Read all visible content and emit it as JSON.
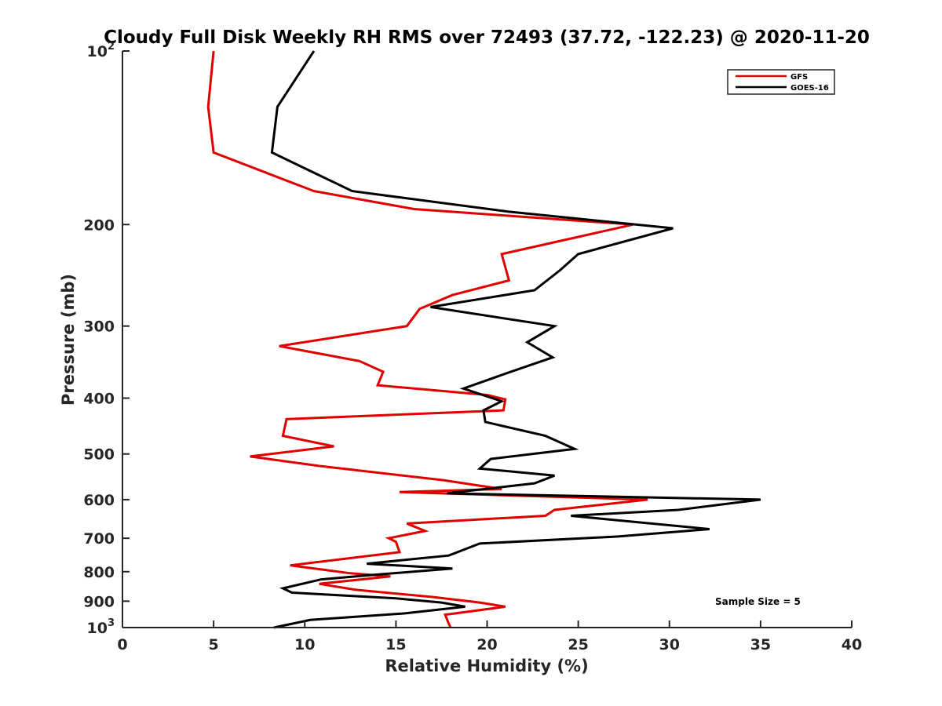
{
  "chart_data": {
    "type": "line",
    "title": "Cloudy Full Disk Weekly RH RMS over 72493 (37.72, -122.23) @ 2020-11-20",
    "xlabel": "Relative Humidity (%)",
    "ylabel": "Pressure (mb)",
    "xlim": [
      0,
      40
    ],
    "ylim": [
      100,
      1000
    ],
    "y_scale": "log",
    "y_reversed": true,
    "x_ticks": [
      0,
      5,
      10,
      15,
      20,
      25,
      30,
      35,
      40
    ],
    "y_ticks": [
      {
        "value": 100,
        "base": "10",
        "exp": "2"
      },
      {
        "value": 200,
        "label": "200"
      },
      {
        "value": 300,
        "label": "300"
      },
      {
        "value": 400,
        "label": "400"
      },
      {
        "value": 500,
        "label": "500"
      },
      {
        "value": 600,
        "label": "600"
      },
      {
        "value": 700,
        "label": "700"
      },
      {
        "value": 800,
        "label": "800"
      },
      {
        "value": 900,
        "label": "900"
      },
      {
        "value": 1000,
        "base": "10",
        "exp": "3"
      }
    ],
    "legend_position": "top-right",
    "grid": false,
    "annotation": "Sample Size = 5",
    "series": [
      {
        "name": "GFS",
        "color": "#e00000",
        "points": [
          [
            5.0,
            100
          ],
          [
            4.7,
            125
          ],
          [
            5.0,
            150
          ],
          [
            10.5,
            175
          ],
          [
            16.0,
            188
          ],
          [
            28.0,
            200
          ],
          [
            20.8,
            225
          ],
          [
            21.2,
            250
          ],
          [
            18.1,
            265
          ],
          [
            16.3,
            280
          ],
          [
            15.6,
            300
          ],
          [
            8.6,
            325
          ],
          [
            13.0,
            345
          ],
          [
            14.3,
            360
          ],
          [
            14.0,
            380
          ],
          [
            20.0,
            395
          ],
          [
            21.0,
            402
          ],
          [
            20.9,
            420
          ],
          [
            9.0,
            435
          ],
          [
            8.8,
            465
          ],
          [
            11.6,
            485
          ],
          [
            7.0,
            505
          ],
          [
            10.9,
            525
          ],
          [
            17.6,
            555
          ],
          [
            20.8,
            575
          ],
          [
            15.2,
            582
          ],
          [
            28.8,
            600
          ],
          [
            23.7,
            625
          ],
          [
            23.2,
            640
          ],
          [
            15.6,
            660
          ],
          [
            16.6,
            680
          ],
          [
            14.6,
            700
          ],
          [
            15.0,
            710
          ],
          [
            15.2,
            740
          ],
          [
            9.2,
            780
          ],
          [
            12.5,
            805
          ],
          [
            14.7,
            815
          ],
          [
            10.8,
            840
          ],
          [
            12.8,
            860
          ],
          [
            17.0,
            885
          ],
          [
            19.6,
            905
          ],
          [
            21.0,
            920
          ],
          [
            17.7,
            950
          ],
          [
            17.9,
            985
          ],
          [
            18.0,
            1000
          ]
        ]
      },
      {
        "name": "GOES-16",
        "color": "#000000",
        "points": [
          [
            10.5,
            100
          ],
          [
            8.5,
            125
          ],
          [
            8.2,
            150
          ],
          [
            12.6,
            175
          ],
          [
            21.2,
            190
          ],
          [
            30.2,
            203
          ],
          [
            25.0,
            225
          ],
          [
            24.0,
            240
          ],
          [
            22.6,
            260
          ],
          [
            16.9,
            278
          ],
          [
            23.7,
            300
          ],
          [
            22.2,
            320
          ],
          [
            23.6,
            340
          ],
          [
            21.3,
            360
          ],
          [
            18.7,
            385
          ],
          [
            20.8,
            405
          ],
          [
            19.8,
            420
          ],
          [
            19.9,
            440
          ],
          [
            23.2,
            465
          ],
          [
            24.8,
            490
          ],
          [
            20.2,
            510
          ],
          [
            19.6,
            530
          ],
          [
            23.7,
            545
          ],
          [
            22.6,
            562
          ],
          [
            17.8,
            585
          ],
          [
            35.0,
            600
          ],
          [
            30.5,
            625
          ],
          [
            24.6,
            640
          ],
          [
            32.2,
            675
          ],
          [
            27.2,
            695
          ],
          [
            19.6,
            715
          ],
          [
            17.9,
            750
          ],
          [
            13.4,
            775
          ],
          [
            18.1,
            790
          ],
          [
            13.8,
            810
          ],
          [
            10.9,
            825
          ],
          [
            8.8,
            855
          ],
          [
            9.3,
            870
          ],
          [
            15.0,
            890
          ],
          [
            17.5,
            905
          ],
          [
            18.8,
            920
          ],
          [
            15.5,
            945
          ],
          [
            10.3,
            970
          ],
          [
            8.3,
            1000
          ]
        ]
      }
    ]
  }
}
